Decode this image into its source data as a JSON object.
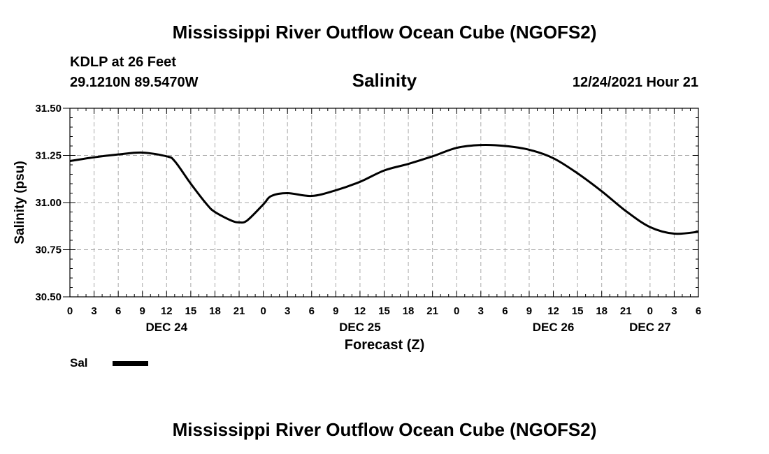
{
  "header": {
    "title": "Mississippi River Outflow Ocean Cube (NGOFS2)",
    "station": "KDLP at 26 Feet",
    "coords": "29.1210N  89.5470W",
    "variable": "Salinity",
    "timestamp": "12/24/2021 Hour 21"
  },
  "footer": {
    "title": "Mississippi River Outflow Ocean Cube (NGOFS2)"
  },
  "legend": {
    "label": "Sal",
    "line_color": "#000000"
  },
  "chart_data": {
    "type": "line",
    "title": "Salinity",
    "xlabel": "Forecast (Z)",
    "ylabel": "Salinity (psu)",
    "ylim": [
      30.5,
      31.5
    ],
    "yticks": [
      "31.50",
      "31.25",
      "31.00",
      "30.75",
      "30.50"
    ],
    "xlim_hours": [
      0,
      78
    ],
    "xtick_labels": [
      "0",
      "3",
      "6",
      "9",
      "12",
      "15",
      "18",
      "21",
      "0",
      "3",
      "6",
      "9",
      "12",
      "15",
      "18",
      "21",
      "0",
      "3",
      "6",
      "9",
      "12",
      "15",
      "18",
      "21",
      "0",
      "3",
      "6"
    ],
    "date_labels": [
      {
        "label": "DEC 24",
        "at_tick": 4
      },
      {
        "label": "DEC 25",
        "at_tick": 12
      },
      {
        "label": "DEC 26",
        "at_tick": 20
      },
      {
        "label": "DEC 27",
        "at_tick": 24
      }
    ],
    "grid": true,
    "series": [
      {
        "name": "Sal",
        "color": "#000000",
        "x": [
          "DEC 24 00",
          "DEC 24 03",
          "DEC 24 06",
          "DEC 24 09",
          "DEC 24 12",
          "DEC 24 13",
          "DEC 24 15",
          "DEC 24 17",
          "DEC 24 18",
          "DEC 24 20",
          "DEC 24 21",
          "DEC 24 22",
          "DEC 25 00",
          "DEC 25 01",
          "DEC 25 03",
          "DEC 25 06",
          "DEC 25 09",
          "DEC 25 12",
          "DEC 25 15",
          "DEC 25 18",
          "DEC 25 21",
          "DEC 26 00",
          "DEC 26 03",
          "DEC 26 06",
          "DEC 26 09",
          "DEC 26 12",
          "DEC 26 15",
          "DEC 26 18",
          "DEC 26 21",
          "DEC 27 00",
          "DEC 27 03",
          "DEC 27 06"
        ],
        "hours": [
          0,
          3,
          6,
          9,
          12,
          13,
          15,
          17,
          18,
          20,
          21,
          22,
          24,
          25,
          27,
          30,
          33,
          36,
          39,
          42,
          45,
          48,
          51,
          54,
          57,
          60,
          63,
          66,
          69,
          72,
          75,
          78
        ],
        "values": [
          31.22,
          31.24,
          31.255,
          31.265,
          31.245,
          31.22,
          31.1,
          30.99,
          30.95,
          30.905,
          30.895,
          30.905,
          30.99,
          31.035,
          31.05,
          31.035,
          31.065,
          31.11,
          31.17,
          31.205,
          31.245,
          31.29,
          31.305,
          31.3,
          31.28,
          31.235,
          31.155,
          31.06,
          30.955,
          30.87,
          30.835,
          30.845
        ]
      }
    ]
  }
}
